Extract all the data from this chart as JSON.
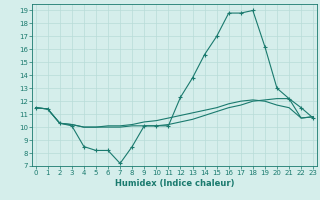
{
  "x_values": [
    0,
    1,
    2,
    3,
    4,
    5,
    6,
    7,
    8,
    9,
    10,
    11,
    12,
    13,
    14,
    15,
    16,
    17,
    18,
    19,
    20,
    21,
    22,
    23
  ],
  "line1_y": [
    11.5,
    11.4,
    10.3,
    10.1,
    8.5,
    8.2,
    8.2,
    7.2,
    8.5,
    10.1,
    10.1,
    10.1,
    12.3,
    13.8,
    15.6,
    17.0,
    18.8,
    18.8,
    19.0,
    16.2,
    13.0,
    12.2,
    11.5,
    10.7
  ],
  "line2_y": [
    11.5,
    11.4,
    10.3,
    10.2,
    10.0,
    10.0,
    10.0,
    10.0,
    10.1,
    10.1,
    10.1,
    10.2,
    10.4,
    10.6,
    10.9,
    11.2,
    11.5,
    11.7,
    12.0,
    12.1,
    12.2,
    12.2,
    10.7,
    10.8
  ],
  "line3_y": [
    11.5,
    11.4,
    10.3,
    10.2,
    10.0,
    10.0,
    10.1,
    10.1,
    10.2,
    10.4,
    10.5,
    10.7,
    10.9,
    11.1,
    11.3,
    11.5,
    11.8,
    12.0,
    12.1,
    12.0,
    11.7,
    11.5,
    10.7,
    10.8
  ],
  "color": "#1a7a6e",
  "bg_color": "#d5eeeb",
  "grid_color": "#b8dcd8",
  "ylim": [
    7,
    19.5
  ],
  "xlim": [
    -0.3,
    23.3
  ],
  "yticks": [
    7,
    8,
    9,
    10,
    11,
    12,
    13,
    14,
    15,
    16,
    17,
    18,
    19
  ],
  "xticks": [
    0,
    1,
    2,
    3,
    4,
    5,
    6,
    7,
    8,
    9,
    10,
    11,
    12,
    13,
    14,
    15,
    16,
    17,
    18,
    19,
    20,
    21,
    22,
    23
  ],
  "xlabel": "Humidex (Indice chaleur)",
  "xlabel_fontsize": 6,
  "tick_fontsize": 5
}
